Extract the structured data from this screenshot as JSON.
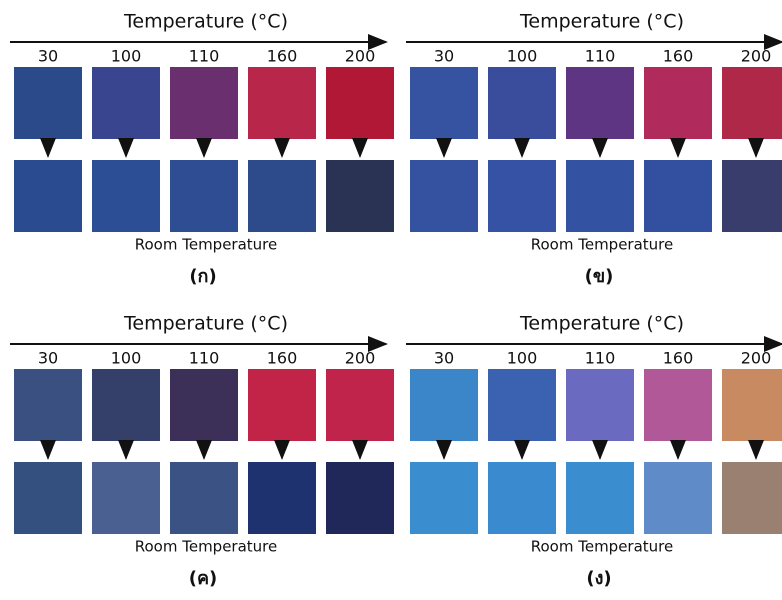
{
  "panels": [
    {
      "axis_label": "Temperature (°C)",
      "temperatures": [
        "30",
        "100",
        "110",
        "160",
        "200"
      ],
      "bottom_label": "Room Temperature",
      "label": "(ก)",
      "top_colors": [
        "#2b4a8a",
        "#3a4590",
        "#6a2f6e",
        "#b8274a",
        "#b01836"
      ],
      "bottom_colors": [
        "#2a4b8f",
        "#2c4e94",
        "#2e4d92",
        "#2d4a8a",
        "#2b3355"
      ]
    },
    {
      "axis_label": "Temperature (°C)",
      "temperatures": [
        "30",
        "100",
        "110",
        "160",
        "200"
      ],
      "bottom_label": "Room Temperature",
      "label": "(ข)",
      "top_colors": [
        "#3553a0",
        "#3a4d9c",
        "#5e3583",
        "#b02a5c",
        "#b02848"
      ],
      "bottom_colors": [
        "#3452a0",
        "#3552a4",
        "#3452a2",
        "#3350a0",
        "#383d6c"
      ]
    },
    {
      "axis_label": "Temperature (°C)",
      "temperatures": [
        "30",
        "100",
        "110",
        "160",
        "200"
      ],
      "bottom_label": "Room Temperature",
      "label": "(ค)",
      "top_colors": [
        "#3a5080",
        "#35406a",
        "#3d3058",
        "#c22448",
        "#c0244a"
      ],
      "bottom_colors": [
        "#34507e",
        "#4a6090",
        "#3a5284",
        "#1f3270",
        "#1f2858"
      ]
    },
    {
      "axis_label": "Temperature (°C)",
      "temperatures": [
        "30",
        "100",
        "110",
        "160",
        "200"
      ],
      "bottom_label": "Room Temperature",
      "label": "(ง)",
      "top_colors": [
        "#3a86c8",
        "#3a62b0",
        "#6a6ac0",
        "#b05898",
        "#c88a60"
      ],
      "bottom_colors": [
        "#3a8ed0",
        "#3a8ad0",
        "#3a8ed0",
        "#5f8cc8",
        "#9a8070"
      ]
    }
  ]
}
